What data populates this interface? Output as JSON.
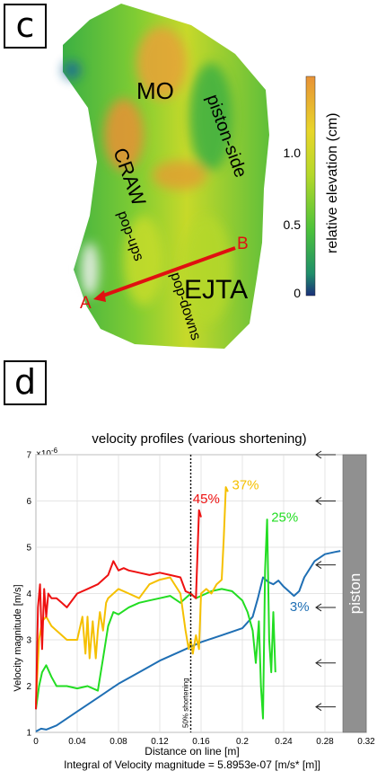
{
  "panel_c": {
    "label": "c",
    "features": {
      "mo": "MO",
      "craw": "CRAW",
      "ejta": "EJTA",
      "piston_side": "piston-side",
      "pop_ups": "pop-ups",
      "pop_downs": "pop-downs",
      "point_a": "A",
      "point_b": "B"
    },
    "colorbar": {
      "title": "relative elevation (cm)",
      "ticks": [
        "1.0",
        "0.5",
        "0"
      ]
    },
    "colors": {
      "section_line": "#e01010"
    }
  },
  "panel_d": {
    "label": "d"
  },
  "chart_data": {
    "type": "line",
    "title": "velocity profiles (various shortening)",
    "xlabel": "Distance on line [m]",
    "ylabel": "Velocity magnitude [m/s]",
    "y_multiplier": "×10",
    "y_multiplier_exp": "-6",
    "footer": "Integral of Velocity magnitude = 5.8953e-07 [m/s* [m]]",
    "xlim": [
      0,
      0.32
    ],
    "ylim": [
      1,
      7
    ],
    "x_ticks": [
      "0",
      "0.04",
      "0.08",
      "0.12",
      "0.16",
      "0.2",
      "0.24",
      "0.28",
      "0.32"
    ],
    "y_ticks": [
      "1",
      "2",
      "3",
      "4",
      "5",
      "6",
      "7"
    ],
    "grid": true,
    "vline": {
      "x": 0.15,
      "label": "50% shortening"
    },
    "piston": {
      "label": "piston",
      "x_start": 0.3
    },
    "series": [
      {
        "name": "3%",
        "color": "#1f6fb4",
        "x": [
          0,
          0.005,
          0.01,
          0.02,
          0.03,
          0.04,
          0.06,
          0.08,
          0.1,
          0.12,
          0.14,
          0.16,
          0.18,
          0.2,
          0.21,
          0.215,
          0.22,
          0.225,
          0.23,
          0.235,
          0.24,
          0.25,
          0.255,
          0.26,
          0.27,
          0.28,
          0.29,
          0.295
        ],
        "y": [
          1.02,
          1.08,
          1.06,
          1.15,
          1.3,
          1.45,
          1.75,
          2.05,
          2.3,
          2.55,
          2.75,
          2.95,
          3.1,
          3.25,
          3.5,
          3.9,
          4.35,
          4.25,
          4.2,
          4.28,
          4.15,
          3.95,
          4.05,
          4.35,
          4.7,
          4.85,
          4.9,
          4.92
        ]
      },
      {
        "name": "25%",
        "color": "#22dd22",
        "x": [
          0,
          0.003,
          0.006,
          0.01,
          0.015,
          0.02,
          0.03,
          0.04,
          0.05,
          0.06,
          0.065,
          0.07,
          0.075,
          0.08,
          0.09,
          0.1,
          0.11,
          0.12,
          0.13,
          0.14,
          0.15,
          0.155,
          0.16,
          0.17,
          0.18,
          0.19,
          0.2,
          0.205,
          0.21,
          0.213,
          0.216,
          0.218,
          0.22,
          0.222,
          0.224,
          0.226,
          0.228,
          0.23,
          0.232
        ],
        "y": [
          1.5,
          2.0,
          2.3,
          2.45,
          2.2,
          2.0,
          2.0,
          1.95,
          2.0,
          1.9,
          2.6,
          3.3,
          3.6,
          3.55,
          3.7,
          3.8,
          3.85,
          3.9,
          3.95,
          3.8,
          4.0,
          3.9,
          3.95,
          4.05,
          4.1,
          4.05,
          3.85,
          3.6,
          3.2,
          2.5,
          3.4,
          2.0,
          1.3,
          4.5,
          5.6,
          3.0,
          2.3,
          3.6,
          2.3
        ]
      },
      {
        "name": "37%",
        "color": "#f5c000",
        "x": [
          0,
          0.003,
          0.006,
          0.01,
          0.015,
          0.02,
          0.03,
          0.04,
          0.045,
          0.048,
          0.05,
          0.052,
          0.055,
          0.058,
          0.06,
          0.062,
          0.065,
          0.068,
          0.07,
          0.075,
          0.08,
          0.09,
          0.1,
          0.11,
          0.12,
          0.13,
          0.14,
          0.145,
          0.148,
          0.15,
          0.152,
          0.155,
          0.158,
          0.16,
          0.165,
          0.17,
          0.175,
          0.18,
          0.182,
          0.184,
          0.186
        ],
        "y": [
          1.6,
          3.0,
          3.4,
          3.5,
          3.3,
          3.2,
          3.0,
          3.0,
          3.5,
          2.7,
          3.5,
          2.6,
          3.4,
          2.6,
          3.2,
          3.6,
          3.2,
          3.8,
          3.9,
          4.0,
          4.1,
          4.0,
          3.9,
          4.2,
          4.3,
          4.35,
          4.0,
          3.2,
          2.8,
          3.0,
          2.7,
          3.1,
          2.8,
          4.0,
          4.1,
          4.0,
          4.2,
          4.3,
          5.2,
          6.3,
          6.2
        ]
      },
      {
        "name": "45%",
        "color": "#ee1111",
        "x": [
          0,
          0.002,
          0.004,
          0.006,
          0.008,
          0.01,
          0.012,
          0.015,
          0.02,
          0.025,
          0.03,
          0.04,
          0.05,
          0.06,
          0.07,
          0.075,
          0.08,
          0.085,
          0.09,
          0.1,
          0.11,
          0.12,
          0.13,
          0.14,
          0.145,
          0.15,
          0.155,
          0.158,
          0.16
        ],
        "y": [
          1.5,
          3.7,
          4.2,
          2.8,
          4.1,
          3.5,
          4.0,
          3.9,
          3.9,
          3.8,
          3.7,
          4.0,
          4.1,
          4.2,
          4.4,
          4.7,
          4.5,
          4.55,
          4.5,
          4.45,
          4.4,
          4.45,
          4.4,
          4.35,
          4.05,
          4.0,
          3.9,
          5.8,
          5.65
        ]
      }
    ],
    "series_labels": [
      {
        "text": "45%",
        "x": 0.152,
        "y": 5.95,
        "color": "#ee1111"
      },
      {
        "text": "37%",
        "x": 0.19,
        "y": 6.25,
        "color": "#f5c000"
      },
      {
        "text": "25%",
        "x": 0.228,
        "y": 5.55,
        "color": "#22dd22"
      },
      {
        "text": "3%",
        "x": 0.246,
        "y": 3.62,
        "color": "#1f6fb4"
      }
    ],
    "arrows_y": [
      7.0,
      6.0,
      4.62,
      3.7,
      2.5,
      1.55
    ]
  }
}
